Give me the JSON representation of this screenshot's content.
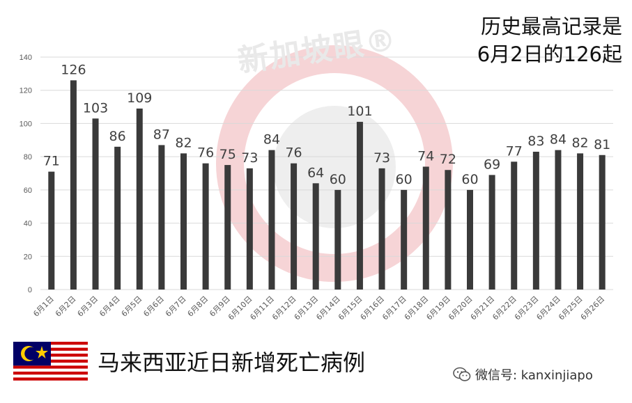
{
  "watermark": "新加坡眼®",
  "annotation": {
    "line1": "历史最高记录是",
    "line2": "6月2日的126起"
  },
  "footer": {
    "title": "马来西亚近日新增死亡病例",
    "wechat_label": "微信号: kanxinjiapo"
  },
  "colors": {
    "bar": "#3a3a3a",
    "grid": "#d9d9d9",
    "axis_text": "#595959",
    "value_label": "#404040",
    "watermark_red": "#f3c9cb"
  },
  "chart_data": {
    "type": "bar",
    "categories": [
      "6月1日",
      "6月2日",
      "6月3日",
      "6月4日",
      "6月5日",
      "6月6日",
      "6月7日",
      "6月8日",
      "6月9日",
      "6月10日",
      "6月11日",
      "6月12日",
      "6月13日",
      "6月14日",
      "6月15日",
      "6月16日",
      "6月17日",
      "6月18日",
      "6月19日",
      "6月20日",
      "6月21日",
      "6月22日",
      "6月23日",
      "6月24日",
      "6月25日",
      "6月26日"
    ],
    "values": [
      71,
      126,
      103,
      86,
      109,
      87,
      82,
      76,
      75,
      73,
      84,
      76,
      64,
      60,
      101,
      73,
      60,
      74,
      72,
      60,
      69,
      77,
      83,
      84,
      82,
      81
    ],
    "ylim": [
      0,
      140
    ],
    "yticks": [
      0,
      20,
      40,
      60,
      80,
      100,
      120,
      140
    ],
    "grid": true,
    "legend": "none",
    "xlabel": "",
    "ylabel": ""
  }
}
